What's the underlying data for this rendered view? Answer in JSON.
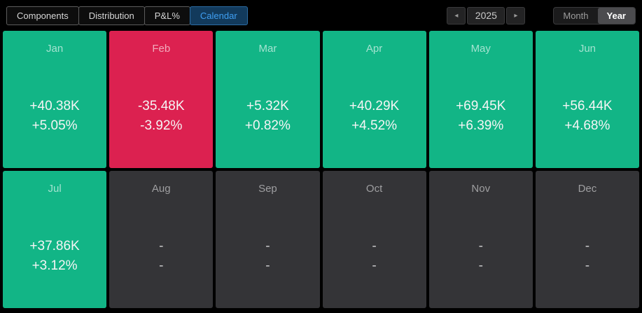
{
  "toolbar": {
    "tabs": [
      {
        "label": "Components",
        "state": "idle"
      },
      {
        "label": "Distribution",
        "state": "idle"
      },
      {
        "label": "P&L%",
        "state": "idle"
      },
      {
        "label": "Calendar",
        "state": "active"
      }
    ],
    "year_nav": {
      "prev_icon": "◂",
      "year": "2025",
      "next_icon": "▸"
    },
    "period_toggle": {
      "options": [
        {
          "label": "Month",
          "state": "idle"
        },
        {
          "label": "Year",
          "state": "active"
        }
      ]
    }
  },
  "colors": {
    "profit": "#12b586",
    "loss": "#dc2150",
    "empty": "#343437",
    "active_tab_bg": "#123a5c",
    "active_tab_text": "#3f9ff2"
  },
  "calendar": {
    "year": "2025",
    "months": [
      {
        "label": "Jan",
        "pnl": "+40.38K",
        "pct": "+5.05%",
        "state": "profit"
      },
      {
        "label": "Feb",
        "pnl": "-35.48K",
        "pct": "-3.92%",
        "state": "loss"
      },
      {
        "label": "Mar",
        "pnl": "+5.32K",
        "pct": "+0.82%",
        "state": "profit"
      },
      {
        "label": "Apr",
        "pnl": "+40.29K",
        "pct": "+4.52%",
        "state": "profit"
      },
      {
        "label": "May",
        "pnl": "+69.45K",
        "pct": "+6.39%",
        "state": "profit"
      },
      {
        "label": "Jun",
        "pnl": "+56.44K",
        "pct": "+4.68%",
        "state": "profit"
      },
      {
        "label": "Jul",
        "pnl": "+37.86K",
        "pct": "+3.12%",
        "state": "profit"
      },
      {
        "label": "Aug",
        "pnl": "-",
        "pct": "-",
        "state": "empty"
      },
      {
        "label": "Sep",
        "pnl": "-",
        "pct": "-",
        "state": "empty"
      },
      {
        "label": "Oct",
        "pnl": "-",
        "pct": "-",
        "state": "empty"
      },
      {
        "label": "Nov",
        "pnl": "-",
        "pct": "-",
        "state": "empty"
      },
      {
        "label": "Dec",
        "pnl": "-",
        "pct": "-",
        "state": "empty"
      }
    ]
  }
}
